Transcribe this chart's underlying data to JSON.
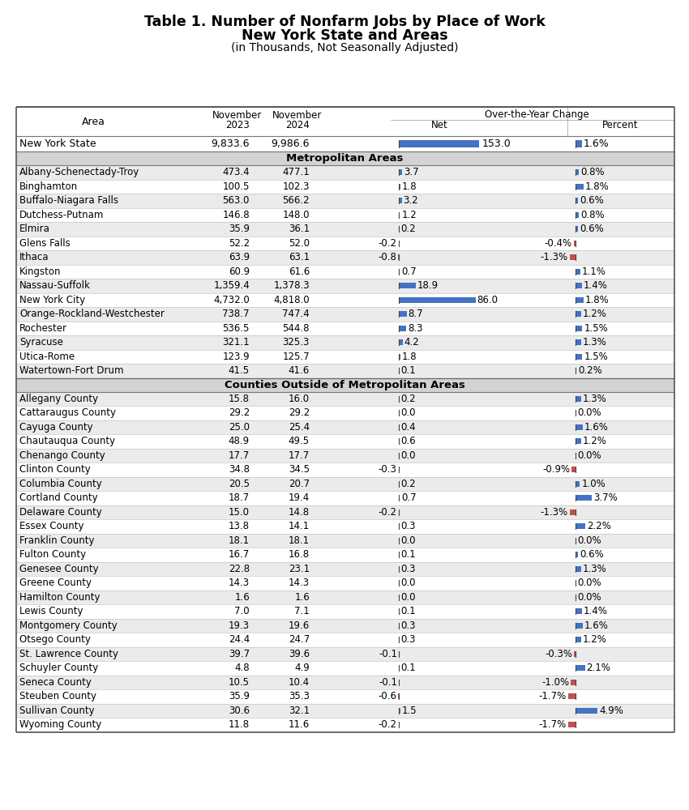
{
  "title_line1": "Table 1. Number of Nonfarm Jobs by Place of Work",
  "title_line2": "New York State and Areas",
  "title_line3": "(in Thousands, Not Seasonally Adjusted)",
  "state_row": [
    "New York State",
    "9,833.6",
    "9,986.6",
    153.0,
    "1.6%"
  ],
  "metro_header": "Metropolitan Areas",
  "metro_rows": [
    [
      "Albany-Schenectady-Troy",
      "473.4",
      "477.1",
      3.7,
      "0.8%"
    ],
    [
      "Binghamton",
      "100.5",
      "102.3",
      1.8,
      "1.8%"
    ],
    [
      "Buffalo-Niagara Falls",
      "563.0",
      "566.2",
      3.2,
      "0.6%"
    ],
    [
      "Dutchess-Putnam",
      "146.8",
      "148.0",
      1.2,
      "0.8%"
    ],
    [
      "Elmira",
      "35.9",
      "36.1",
      0.2,
      "0.6%"
    ],
    [
      "Glens Falls",
      "52.2",
      "52.0",
      -0.2,
      "-0.4%"
    ],
    [
      "Ithaca",
      "63.9",
      "63.1",
      -0.8,
      "-1.3%"
    ],
    [
      "Kingston",
      "60.9",
      "61.6",
      0.7,
      "1.1%"
    ],
    [
      "Nassau-Suffolk",
      "1,359.4",
      "1,378.3",
      18.9,
      "1.4%"
    ],
    [
      "New York City",
      "4,732.0",
      "4,818.0",
      86.0,
      "1.8%"
    ],
    [
      "Orange-Rockland-Westchester",
      "738.7",
      "747.4",
      8.7,
      "1.2%"
    ],
    [
      "Rochester",
      "536.5",
      "544.8",
      8.3,
      "1.5%"
    ],
    [
      "Syracuse",
      "321.1",
      "325.3",
      4.2,
      "1.3%"
    ],
    [
      "Utica-Rome",
      "123.9",
      "125.7",
      1.8,
      "1.5%"
    ],
    [
      "Watertown-Fort Drum",
      "41.5",
      "41.6",
      0.1,
      "0.2%"
    ]
  ],
  "county_header": "Counties Outside of Metropolitan Areas",
  "county_rows": [
    [
      "Allegany County",
      "15.8",
      "16.0",
      0.2,
      "1.3%"
    ],
    [
      "Cattaraugus County",
      "29.2",
      "29.2",
      0.0,
      "0.0%"
    ],
    [
      "Cayuga County",
      "25.0",
      "25.4",
      0.4,
      "1.6%"
    ],
    [
      "Chautauqua County",
      "48.9",
      "49.5",
      0.6,
      "1.2%"
    ],
    [
      "Chenango County",
      "17.7",
      "17.7",
      0.0,
      "0.0%"
    ],
    [
      "Clinton County",
      "34.8",
      "34.5",
      -0.3,
      "-0.9%"
    ],
    [
      "Columbia County",
      "20.5",
      "20.7",
      0.2,
      "1.0%"
    ],
    [
      "Cortland County",
      "18.7",
      "19.4",
      0.7,
      "3.7%"
    ],
    [
      "Delaware County",
      "15.0",
      "14.8",
      -0.2,
      "-1.3%"
    ],
    [
      "Essex County",
      "13.8",
      "14.1",
      0.3,
      "2.2%"
    ],
    [
      "Franklin County",
      "18.1",
      "18.1",
      0.0,
      "0.0%"
    ],
    [
      "Fulton County",
      "16.7",
      "16.8",
      0.1,
      "0.6%"
    ],
    [
      "Genesee County",
      "22.8",
      "23.1",
      0.3,
      "1.3%"
    ],
    [
      "Greene County",
      "14.3",
      "14.3",
      0.0,
      "0.0%"
    ],
    [
      "Hamilton County",
      "1.6",
      "1.6",
      0.0,
      "0.0%"
    ],
    [
      "Lewis County",
      "7.0",
      "7.1",
      0.1,
      "1.4%"
    ],
    [
      "Montgomery County",
      "19.3",
      "19.6",
      0.3,
      "1.6%"
    ],
    [
      "Otsego County",
      "24.4",
      "24.7",
      0.3,
      "1.2%"
    ],
    [
      "St. Lawrence County",
      "39.7",
      "39.6",
      -0.1,
      "-0.3%"
    ],
    [
      "Schuyler County",
      "4.8",
      "4.9",
      0.1,
      "2.1%"
    ],
    [
      "Seneca County",
      "10.5",
      "10.4",
      -0.1,
      "-1.0%"
    ],
    [
      "Steuben County",
      "35.9",
      "35.3",
      -0.6,
      "-1.7%"
    ],
    [
      "Sullivan County",
      "30.6",
      "32.1",
      1.5,
      "4.9%"
    ],
    [
      "Wyoming County",
      "11.8",
      "11.6",
      -0.2,
      "-1.7%"
    ]
  ],
  "bar_color_pos": "#4472C4",
  "bar_color_neg": "#C0504D",
  "bg_section": "#D3D3D3",
  "bg_odd": "#EBEBEB",
  "bg_even": "#FFFFFF",
  "bg_header": "#FFFFFF"
}
